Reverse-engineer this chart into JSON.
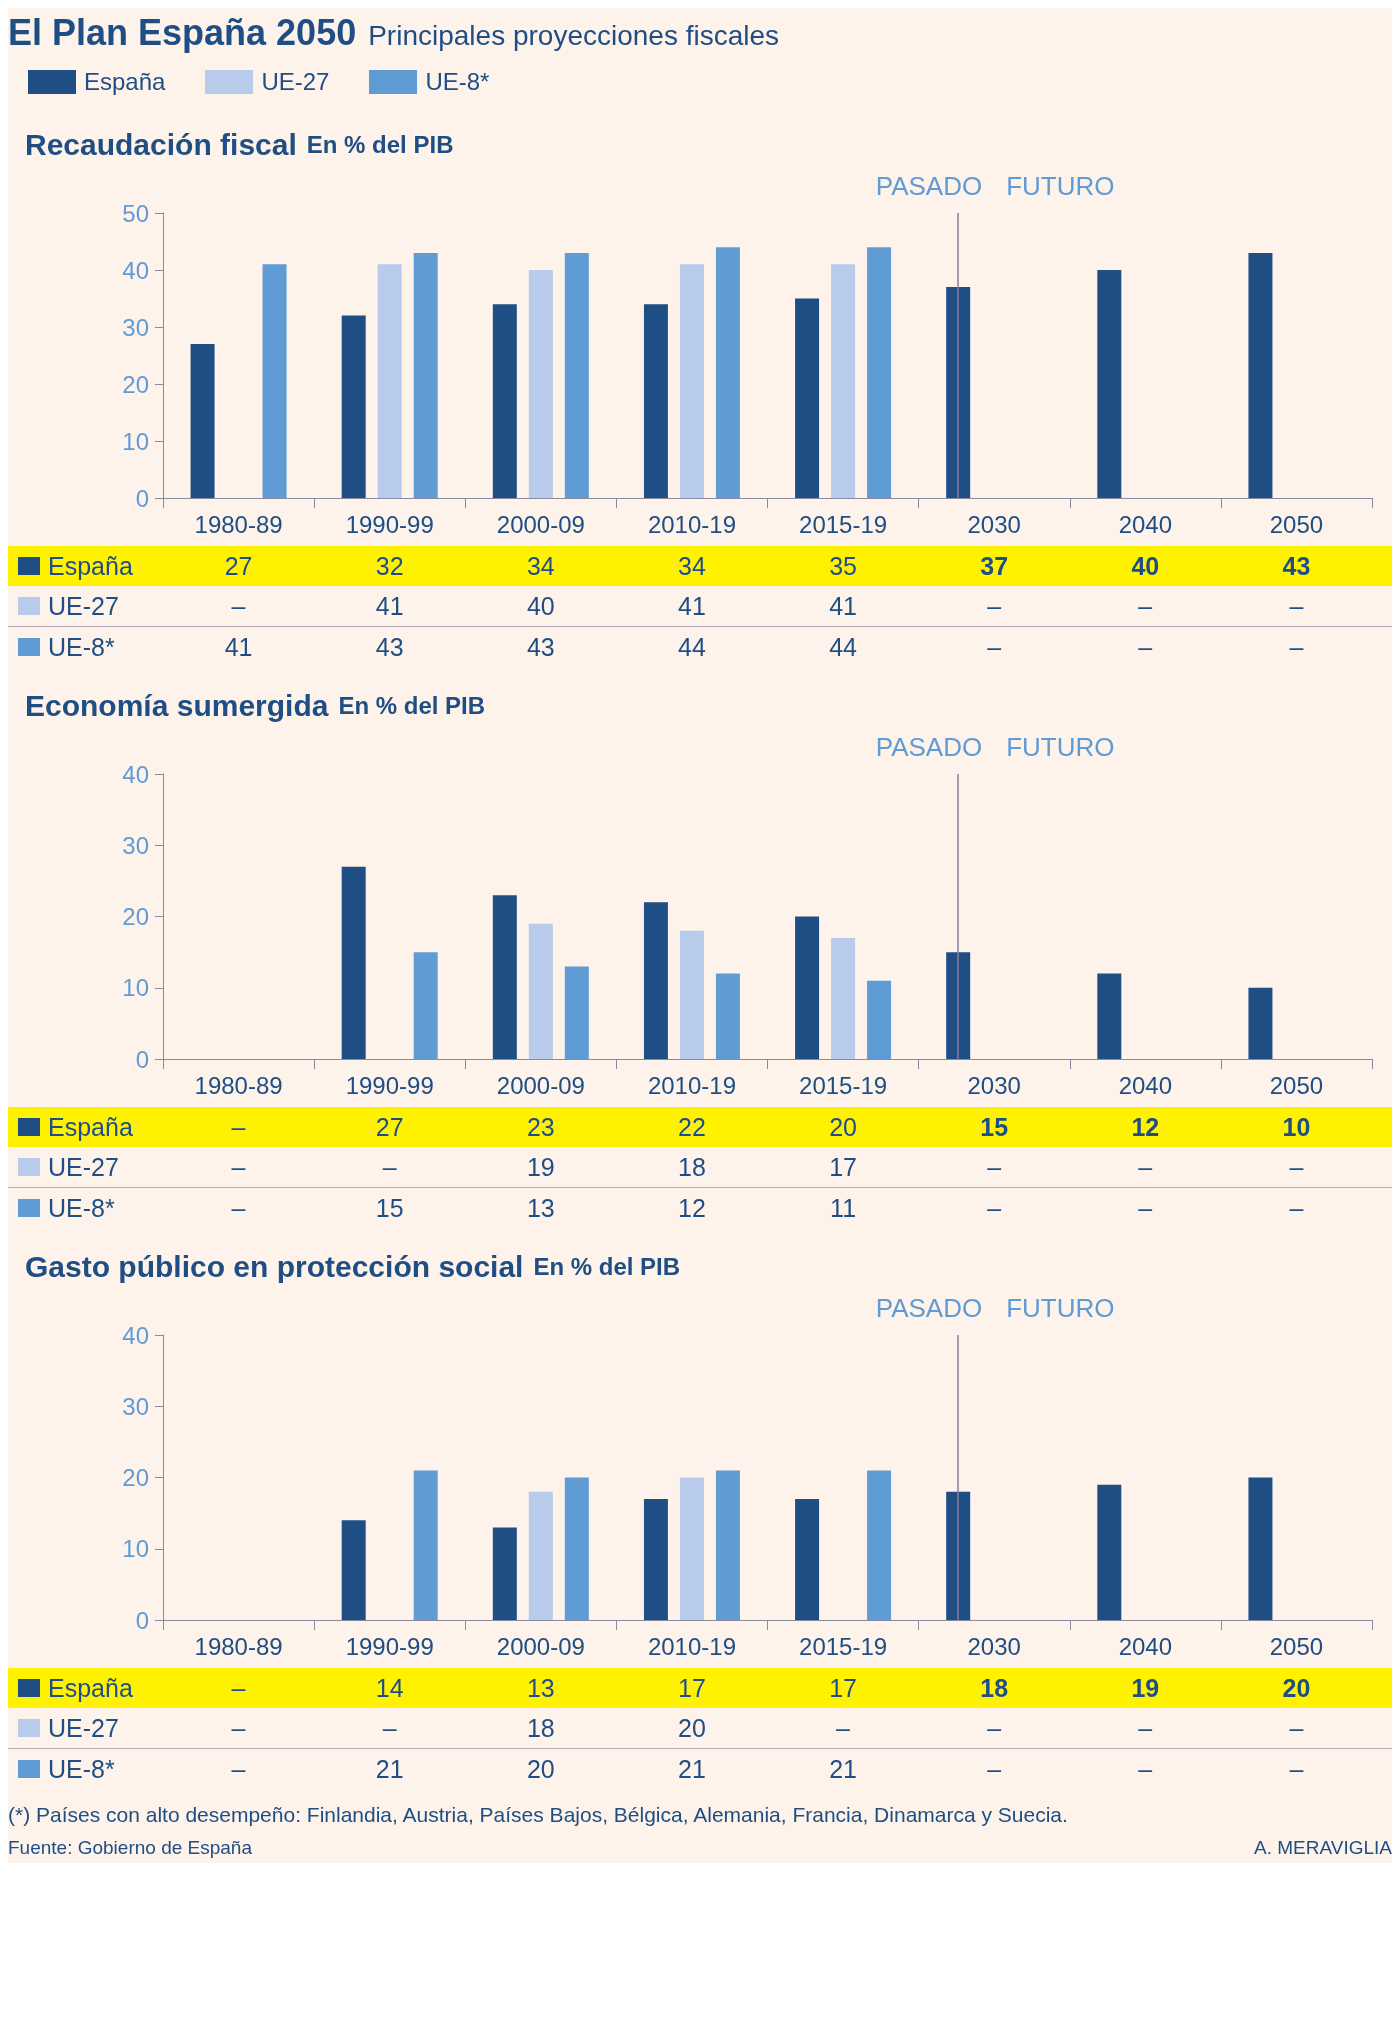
{
  "chart_data": [
    {
      "type": "other",
      "title": "El Plan España 2050",
      "subtitle": "Principales proyecciones fiscales"
    },
    {
      "type": "bar",
      "title": "Recaudación fiscal",
      "subtitle": "En % del PIB",
      "categories": [
        "1980-89",
        "1990-99",
        "2000-09",
        "2010-19",
        "2015-19",
        "2030",
        "2040",
        "2050"
      ],
      "series": [
        {
          "name": "España",
          "color": "#1f4e85",
          "values": [
            27,
            32,
            34,
            34,
            35,
            37,
            40,
            43
          ],
          "value_labels": [
            "27",
            "32",
            "34",
            "34",
            "35",
            "37",
            "40",
            "43"
          ]
        },
        {
          "name": "UE-27",
          "color": "#b9cbea",
          "values": [
            null,
            41,
            40,
            41,
            41,
            null,
            null,
            null
          ],
          "value_labels": [
            "–",
            "41",
            "40",
            "41",
            "41",
            "–",
            "–",
            "–"
          ]
        },
        {
          "name": "UE-8*",
          "color": "#5f9bd5",
          "values": [
            41,
            43,
            43,
            44,
            44,
            null,
            null,
            null
          ],
          "value_labels": [
            "41",
            "43",
            "43",
            "44",
            "44",
            "–",
            "–",
            "–"
          ]
        }
      ],
      "ylim": [
        0,
        50
      ],
      "yticks": [
        0,
        10,
        20,
        30,
        40,
        50
      ],
      "grid": false,
      "legend": "bottom left",
      "ref_lines": [
        {
          "axis": "x",
          "value": "2030",
          "label": "FUTURO"
        }
      ],
      "annotations": [
        "PASADO"
      ]
    },
    {
      "type": "bar",
      "title": "Economía sumergida",
      "subtitle": "En % del PIB",
      "categories": [
        "1980-89",
        "1990-99",
        "2000-09",
        "2010-19",
        "2015-19",
        "2030",
        "2040",
        "2050"
      ],
      "series": [
        {
          "name": "España",
          "color": "#1f4e85",
          "values": [
            null,
            27,
            23,
            22,
            20,
            15,
            12,
            10
          ],
          "value_labels": [
            "–",
            "27",
            "23",
            "22",
            "20",
            "15",
            "12",
            "10"
          ]
        },
        {
          "name": "UE-27",
          "color": "#b9cbea",
          "values": [
            null,
            null,
            19,
            18,
            17,
            null,
            null,
            null
          ],
          "value_labels": [
            "–",
            "–",
            "19",
            "18",
            "17",
            "–",
            "–",
            "–"
          ]
        },
        {
          "name": "UE-8*",
          "color": "#5f9bd5",
          "values": [
            null,
            15,
            13,
            12,
            11,
            null,
            null,
            null
          ],
          "value_labels": [
            "–",
            "15",
            "13",
            "12",
            "11",
            "–",
            "–",
            "–"
          ]
        }
      ],
      "ylim": [
        0,
        40
      ],
      "yticks": [
        0,
        10,
        20,
        30,
        40
      ],
      "grid": false,
      "legend": "bottom left",
      "ref_lines": [
        {
          "axis": "x",
          "value": "2030",
          "label": "FUTURO"
        }
      ],
      "annotations": [
        "PASADO"
      ]
    },
    {
      "type": "bar",
      "title": "Gasto público en protección social",
      "subtitle": "En % del PIB",
      "categories": [
        "1980-89",
        "1990-99",
        "2000-09",
        "2010-19",
        "2015-19",
        "2030",
        "2040",
        "2050"
      ],
      "series": [
        {
          "name": "España",
          "color": "#1f4e85",
          "values": [
            null,
            14,
            13,
            17,
            17,
            18,
            19,
            20
          ],
          "value_labels": [
            "–",
            "14",
            "13",
            "17",
            "17",
            "18",
            "19",
            "20"
          ]
        },
        {
          "name": "UE-27",
          "color": "#b9cbea",
          "values": [
            null,
            null,
            18,
            20,
            null,
            null,
            null,
            null
          ],
          "value_labels": [
            "–",
            "–",
            "18",
            "20",
            "–",
            "–",
            "–",
            "–"
          ]
        },
        {
          "name": "UE-8*",
          "color": "#5f9bd5",
          "values": [
            null,
            21,
            20,
            21,
            21,
            null,
            null,
            null
          ],
          "value_labels": [
            "–",
            "21",
            "20",
            "21",
            "21",
            "–",
            "–",
            "–"
          ]
        }
      ],
      "ylim": [
        0,
        40
      ],
      "yticks": [
        0,
        10,
        20,
        30,
        40
      ],
      "grid": false,
      "legend": "bottom left",
      "ref_lines": [
        {
          "axis": "x",
          "value": "2030",
          "label": "FUTURO"
        }
      ],
      "annotations": [
        "PASADO"
      ]
    },
    {
      "type": "other",
      "annotations": [
        "(*) Países con alto desempeño: Finlandia, Austria, Países Bajos, Bélgica, Alemania, Francia, Dinamarca y Suecia.",
        "Fuente: Gobierno de España",
        "A. MERAVIGLIA"
      ]
    }
  ]
}
